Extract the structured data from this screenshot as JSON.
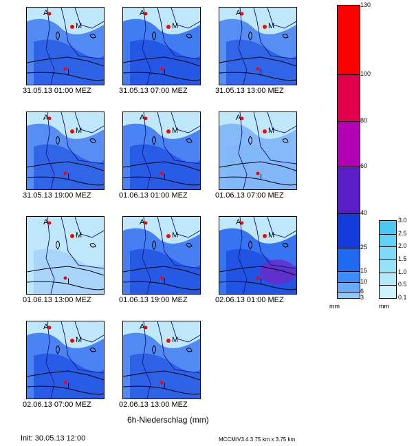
{
  "panels": [
    {
      "label": "31.05.13 01:00 MEZ",
      "intensity": 0.6
    },
    {
      "label": "31.05.13 07:00 MEZ",
      "intensity": 0.8
    },
    {
      "label": "31.05.13 13:00 MEZ",
      "intensity": 0.55
    },
    {
      "label": "31.05.13 19:00 MEZ",
      "intensity": 0.55
    },
    {
      "label": "01.06.13 01:00 MEZ",
      "intensity": 0.7
    },
    {
      "label": "01.06.13 07:00 MEZ",
      "intensity": 0.3
    },
    {
      "label": "01.06.13 13:00 MEZ",
      "intensity": 0.1
    },
    {
      "label": "01.06.13 19:00 MEZ",
      "intensity": 0.75
    },
    {
      "label": "02.06.13 01:00 MEZ",
      "intensity": 0.9
    },
    {
      "label": "02.06.13 07:00 MEZ",
      "intensity": 0.7
    },
    {
      "label": "02.06.13 13:00 MEZ",
      "intensity": 0.6
    }
  ],
  "markers": {
    "a": "A",
    "m": "M",
    "i": "I"
  },
  "legend_main": {
    "ticks": [
      "130",
      "100",
      "80",
      "60",
      "40",
      "25",
      "15",
      "10",
      "6",
      "3"
    ],
    "unit": "mm",
    "colors": [
      "#ff0000",
      "#e0004c",
      "#b400b4",
      "#5a1ec8",
      "#143cdc",
      "#1e6af0",
      "#3c8cff",
      "#64aaff",
      "#8cc8ff",
      "#b4e0ff"
    ]
  },
  "legend_small": {
    "ticks": [
      "3.0",
      "2.5",
      "2.0",
      "1.5",
      "1.0",
      "0.5",
      "0.1"
    ],
    "unit": "mm",
    "colors": [
      "#4ac8f0",
      "#64d2f4",
      "#7edaf6",
      "#98e2f8",
      "#b2eafa",
      "#ccf2fc"
    ]
  },
  "title": "6h-Niederschlag (mm)",
  "init": "Init: 30.05.13 12:00",
  "model": "MCCM/V3.4 3.75 km x 3.75 km"
}
